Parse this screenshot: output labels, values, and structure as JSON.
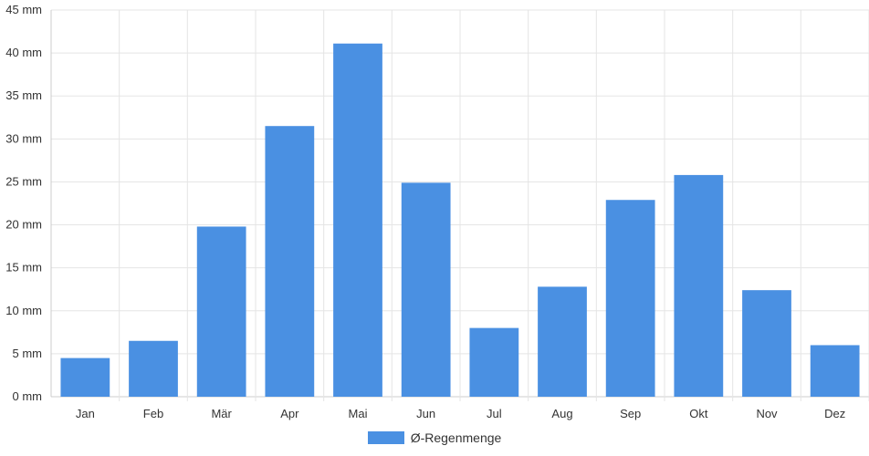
{
  "chart_data": {
    "type": "bar",
    "categories": [
      "Jan",
      "Feb",
      "Mär",
      "Apr",
      "Mai",
      "Jun",
      "Jul",
      "Aug",
      "Sep",
      "Okt",
      "Nov",
      "Dez"
    ],
    "series": [
      {
        "name": "Ø-Regenmenge",
        "values": [
          4.5,
          6.5,
          19.8,
          31.5,
          41.1,
          24.9,
          8.0,
          12.8,
          22.9,
          25.8,
          12.4,
          6.0
        ]
      }
    ],
    "y_tick_labels": [
      "0 mm",
      "5 mm",
      "10 mm",
      "15 mm",
      "20 mm",
      "25 mm",
      "30 mm",
      "35 mm",
      "40 mm",
      "45 mm"
    ],
    "y_ticks": [
      0,
      5,
      10,
      15,
      20,
      25,
      30,
      35,
      40,
      45
    ],
    "ylim": [
      0,
      45
    ],
    "grid": true,
    "legend_position": "bottom-center",
    "colors": {
      "bar": "#4a90e2",
      "grid": "#e5e5e5",
      "axis": "#cccccc",
      "text": "#333333"
    }
  }
}
